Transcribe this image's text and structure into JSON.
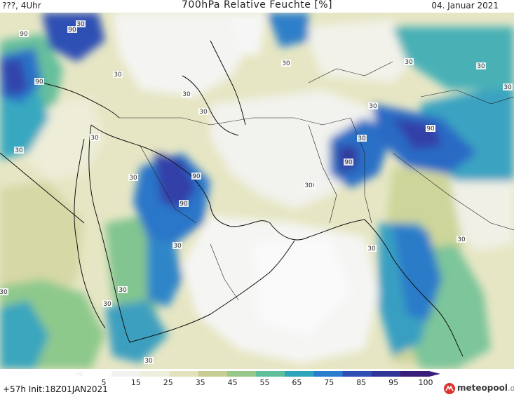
{
  "header": {
    "run_label": "???, 4Uhr",
    "title": "700hPa Relative Feuchte [%]",
    "date": "04. Januar 2021"
  },
  "footer": {
    "forecast_hour": "+57h",
    "init_text": "Init:18Z01JAN2021",
    "brand_main": "meteopool",
    "brand_tld": ".org"
  },
  "legend": {
    "ticks": [
      "5",
      "15",
      "25",
      "35",
      "45",
      "55",
      "65",
      "75",
      "85",
      "95",
      "100"
    ],
    "colors": [
      "#ffffff",
      "#f2f2f0",
      "#eeeede",
      "#e3e2bd",
      "#c8ce92",
      "#99c98a",
      "#5ebf9a",
      "#2fa5bd",
      "#2a7ccd",
      "#2f4fb4",
      "#303698",
      "#3b1e7a"
    ]
  },
  "map_labels": [
    {
      "text": "90"
    },
    {
      "text": "90"
    },
    {
      "text": "90"
    },
    {
      "text": "30"
    },
    {
      "text": "30"
    },
    {
      "text": "30"
    },
    {
      "text": "30"
    },
    {
      "text": "30"
    },
    {
      "text": "30"
    },
    {
      "text": "30"
    },
    {
      "text": "90"
    },
    {
      "text": "90"
    },
    {
      "text": "30"
    },
    {
      "text": "30"
    },
    {
      "text": "30"
    },
    {
      "text": "30"
    },
    {
      "text": "30"
    },
    {
      "text": "30"
    },
    {
      "text": "90"
    },
    {
      "text": "30"
    },
    {
      "text": "90"
    },
    {
      "text": "30"
    },
    {
      "text": "30"
    },
    {
      "text": "30"
    },
    {
      "text": "30"
    },
    {
      "text": "30"
    },
    {
      "text": "30"
    },
    {
      "text": "30"
    },
    {
      "text": "30"
    },
    {
      "text": "30"
    }
  ]
}
